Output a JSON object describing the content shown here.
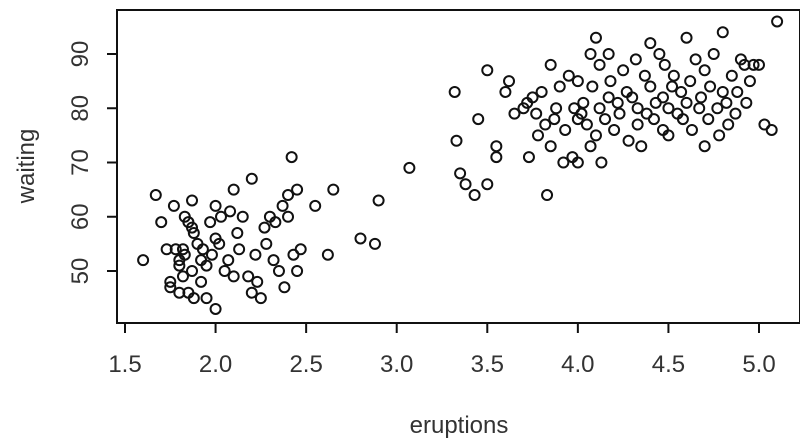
{
  "chart_data": {
    "type": "scatter",
    "title": "",
    "xlabel": "eruptions",
    "ylabel": "waiting",
    "xlim": [
      1.5,
      5.1
    ],
    "ylim": [
      43,
      96
    ],
    "xticks": [
      "1.5",
      "2.0",
      "2.5",
      "3.0",
      "3.5",
      "4.0",
      "4.5",
      "5.0"
    ],
    "yticks": [
      "50",
      "60",
      "70",
      "80",
      "90"
    ],
    "grid": false,
    "legend": "none",
    "marker": "open-circle",
    "marker_color": "#111111",
    "points": [
      [
        1.6,
        52
      ],
      [
        1.67,
        64
      ],
      [
        1.7,
        59
      ],
      [
        1.73,
        54
      ],
      [
        1.75,
        48
      ],
      [
        1.75,
        47
      ],
      [
        1.77,
        62
      ],
      [
        1.78,
        54
      ],
      [
        1.8,
        46
      ],
      [
        1.8,
        52
      ],
      [
        1.8,
        51
      ],
      [
        1.82,
        54
      ],
      [
        1.82,
        49
      ],
      [
        1.83,
        53
      ],
      [
        1.83,
        60
      ],
      [
        1.85,
        59
      ],
      [
        1.85,
        46
      ],
      [
        1.87,
        58
      ],
      [
        1.87,
        63
      ],
      [
        1.87,
        50
      ],
      [
        1.88,
        45
      ],
      [
        1.88,
        57
      ],
      [
        1.9,
        55
      ],
      [
        1.92,
        48
      ],
      [
        1.92,
        52
      ],
      [
        1.93,
        54
      ],
      [
        1.95,
        51
      ],
      [
        1.95,
        45
      ],
      [
        1.97,
        59
      ],
      [
        1.98,
        53
      ],
      [
        2.0,
        43
      ],
      [
        2.0,
        62
      ],
      [
        2.0,
        56
      ],
      [
        2.02,
        55
      ],
      [
        2.03,
        60
      ],
      [
        2.05,
        50
      ],
      [
        2.07,
        52
      ],
      [
        2.08,
        61
      ],
      [
        2.1,
        49
      ],
      [
        2.1,
        65
      ],
      [
        2.12,
        57
      ],
      [
        2.13,
        54
      ],
      [
        2.15,
        60
      ],
      [
        2.18,
        49
      ],
      [
        2.2,
        67
      ],
      [
        2.2,
        46
      ],
      [
        2.22,
        53
      ],
      [
        2.23,
        48
      ],
      [
        2.25,
        45
      ],
      [
        2.27,
        58
      ],
      [
        2.28,
        55
      ],
      [
        2.3,
        60
      ],
      [
        2.32,
        52
      ],
      [
        2.33,
        59
      ],
      [
        2.35,
        50
      ],
      [
        2.37,
        62
      ],
      [
        2.38,
        47
      ],
      [
        2.4,
        60
      ],
      [
        2.4,
        64
      ],
      [
        2.42,
        71
      ],
      [
        2.43,
        53
      ],
      [
        2.45,
        65
      ],
      [
        2.45,
        50
      ],
      [
        2.47,
        54
      ],
      [
        2.55,
        62
      ],
      [
        2.62,
        53
      ],
      [
        2.65,
        65
      ],
      [
        2.8,
        56
      ],
      [
        2.88,
        55
      ],
      [
        2.9,
        63
      ],
      [
        3.07,
        69
      ],
      [
        3.32,
        83
      ],
      [
        3.33,
        74
      ],
      [
        3.35,
        68
      ],
      [
        3.38,
        66
      ],
      [
        3.43,
        64
      ],
      [
        3.45,
        78
      ],
      [
        3.5,
        66
      ],
      [
        3.5,
        87
      ],
      [
        3.55,
        71
      ],
      [
        3.55,
        73
      ],
      [
        3.6,
        83
      ],
      [
        3.62,
        85
      ],
      [
        3.65,
        79
      ],
      [
        3.7,
        80
      ],
      [
        3.72,
        81
      ],
      [
        3.73,
        71
      ],
      [
        3.75,
        82
      ],
      [
        3.77,
        79
      ],
      [
        3.78,
        75
      ],
      [
        3.8,
        83
      ],
      [
        3.82,
        77
      ],
      [
        3.83,
        64
      ],
      [
        3.85,
        73
      ],
      [
        3.85,
        88
      ],
      [
        3.87,
        78
      ],
      [
        3.88,
        80
      ],
      [
        3.9,
        84
      ],
      [
        3.92,
        70
      ],
      [
        3.93,
        76
      ],
      [
        3.95,
        86
      ],
      [
        3.97,
        71
      ],
      [
        3.98,
        80
      ],
      [
        4.0,
        85
      ],
      [
        4.0,
        78
      ],
      [
        4.0,
        70
      ],
      [
        4.02,
        79
      ],
      [
        4.03,
        81
      ],
      [
        4.05,
        77
      ],
      [
        4.07,
        73
      ],
      [
        4.07,
        90
      ],
      [
        4.08,
        84
      ],
      [
        4.1,
        75
      ],
      [
        4.1,
        93
      ],
      [
        4.12,
        88
      ],
      [
        4.12,
        80
      ],
      [
        4.13,
        70
      ],
      [
        4.15,
        78
      ],
      [
        4.17,
        82
      ],
      [
        4.17,
        90
      ],
      [
        4.18,
        85
      ],
      [
        4.2,
        76
      ],
      [
        4.22,
        81
      ],
      [
        4.23,
        79
      ],
      [
        4.25,
        87
      ],
      [
        4.27,
        83
      ],
      [
        4.28,
        74
      ],
      [
        4.3,
        82
      ],
      [
        4.32,
        89
      ],
      [
        4.33,
        77
      ],
      [
        4.33,
        80
      ],
      [
        4.35,
        73
      ],
      [
        4.37,
        86
      ],
      [
        4.38,
        79
      ],
      [
        4.4,
        84
      ],
      [
        4.4,
        92
      ],
      [
        4.42,
        78
      ],
      [
        4.43,
        81
      ],
      [
        4.45,
        90
      ],
      [
        4.47,
        76
      ],
      [
        4.47,
        82
      ],
      [
        4.48,
        88
      ],
      [
        4.5,
        80
      ],
      [
        4.5,
        75
      ],
      [
        4.52,
        84
      ],
      [
        4.53,
        86
      ],
      [
        4.55,
        79
      ],
      [
        4.57,
        83
      ],
      [
        4.58,
        78
      ],
      [
        4.6,
        93
      ],
      [
        4.6,
        81
      ],
      [
        4.62,
        85
      ],
      [
        4.63,
        76
      ],
      [
        4.65,
        89
      ],
      [
        4.67,
        80
      ],
      [
        4.68,
        82
      ],
      [
        4.7,
        73
      ],
      [
        4.7,
        87
      ],
      [
        4.72,
        78
      ],
      [
        4.73,
        84
      ],
      [
        4.75,
        90
      ],
      [
        4.77,
        80
      ],
      [
        4.78,
        75
      ],
      [
        4.8,
        83
      ],
      [
        4.8,
        94
      ],
      [
        4.82,
        81
      ],
      [
        4.83,
        77
      ],
      [
        4.85,
        86
      ],
      [
        4.87,
        79
      ],
      [
        4.88,
        83
      ],
      [
        4.9,
        89
      ],
      [
        4.92,
        88
      ],
      [
        4.93,
        81
      ],
      [
        4.95,
        85
      ],
      [
        4.97,
        88
      ],
      [
        5.0,
        88
      ],
      [
        5.03,
        77
      ],
      [
        5.07,
        76
      ],
      [
        5.1,
        96
      ]
    ]
  }
}
